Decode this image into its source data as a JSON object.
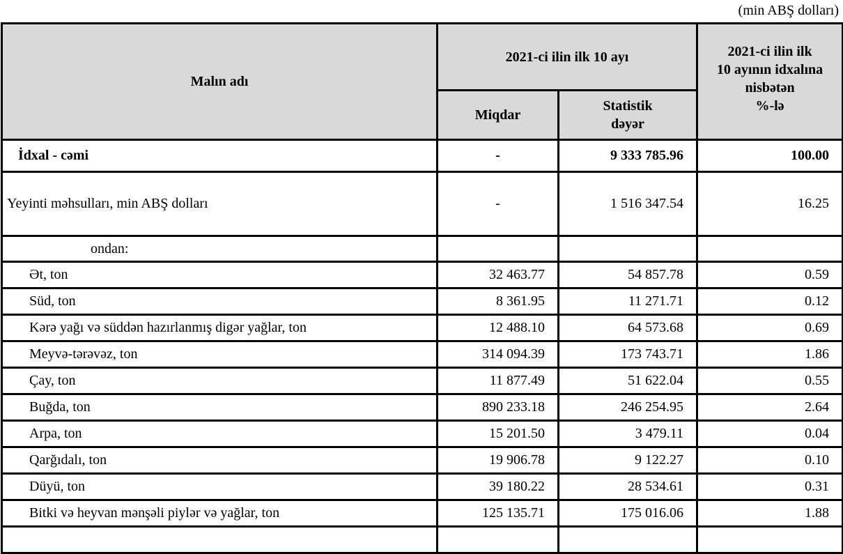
{
  "unit_note": "(min ABŞ dolları)",
  "header": {
    "col_name": "Malın adı",
    "group": "2021-ci ilin ilk 10 ayı",
    "col_qty": "Miqdar",
    "col_value_line1": "Statistik",
    "col_value_line2": "dəyər",
    "col_share_line1": "2021-ci ilin ilk",
    "col_share_line2": "10 ayının idxalına",
    "col_share_line3": "nisbətən",
    "col_share_line4": "%-lə"
  },
  "total": {
    "name": "İdxal - cəmi",
    "qty": "-",
    "value": "9 333 785.96",
    "share": "100.00"
  },
  "food": {
    "name": "Yeyinti məhsulları, min ABŞ dolları",
    "qty": "-",
    "value": "1 516 347.54",
    "share": "16.25"
  },
  "of_which": "ondan:",
  "rows": [
    {
      "name": "Ət, ton",
      "qty": "32 463.77",
      "value": "54 857.78",
      "share": "0.59"
    },
    {
      "name": "Süd, ton",
      "qty": "8 361.95",
      "value": "11 271.71",
      "share": "0.12"
    },
    {
      "name": "Kərə yağı və süddən hazırlanmış digər yağlar, ton",
      "qty": "12 488.10",
      "value": "64 573.68",
      "share": "0.69"
    },
    {
      "name": "Meyvə-tərəvəz, ton",
      "qty": "314 094.39",
      "value": "173 743.71",
      "share": "1.86"
    },
    {
      "name": "Çay, ton",
      "qty": "11 877.49",
      "value": "51 622.04",
      "share": "0.55"
    },
    {
      "name": "Buğda, ton",
      "qty": "890 233.18",
      "value": "246 254.95",
      "share": "2.64"
    },
    {
      "name": "Arpa, ton",
      "qty": "15 201.50",
      "value": "3 479.11",
      "share": "0.04"
    },
    {
      "name": "Qarğıdalı, ton",
      "qty": "19 906.78",
      "value": "9 122.27",
      "share": "0.10"
    },
    {
      "name": "Düyü, ton",
      "qty": "39 180.22",
      "value": "28 534.61",
      "share": "0.31"
    },
    {
      "name": "Bitki və heyvan mənşəli piylər və yağlar, ton",
      "qty": "125 135.71",
      "value": "175 016.06",
      "share": "1.88"
    }
  ]
}
